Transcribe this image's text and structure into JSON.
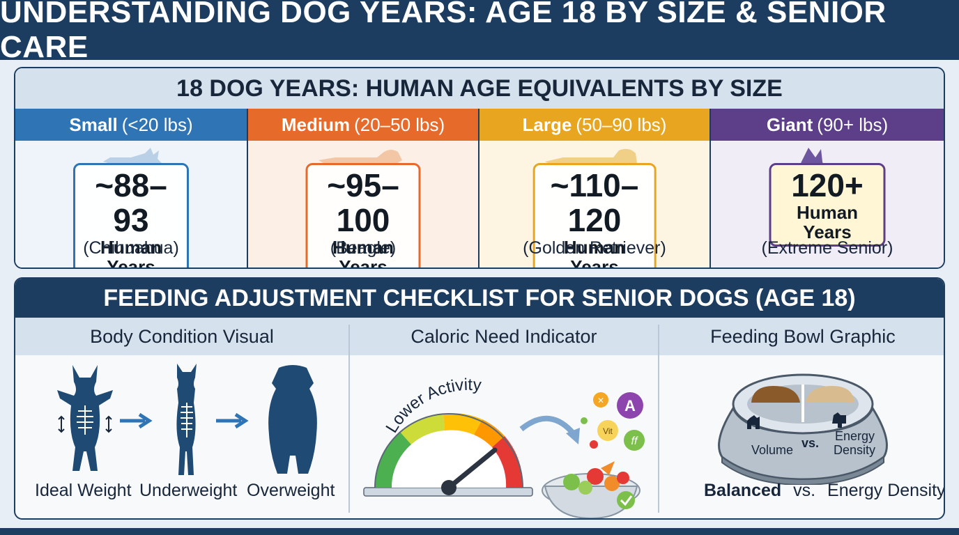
{
  "header": {
    "title": "UNDERSTANDING DOG YEARS: AGE 18 BY SIZE & SENIOR CARE"
  },
  "age_section": {
    "title": "18 DOG YEARS: HUMAN AGE EQUIVALENTS BY SIZE",
    "sizes": [
      {
        "name": "Small",
        "range": "(<20 lbs)",
        "age": "~88–93",
        "unit": "Human Years",
        "breed": "(Chihuahua)",
        "color": "#2f74b5",
        "tint": "#eef4fa"
      },
      {
        "name": "Medium",
        "range": "(20–50 lbs)",
        "age": "~95–100",
        "unit": "Human Years",
        "breed": "(Beagle)",
        "color": "#e66a2a",
        "tint": "#fcefe6"
      },
      {
        "name": "Large",
        "range": "(50–90 lbs)",
        "age": "~110–120",
        "unit": "Human Years",
        "breed": "(Golden Retriever)",
        "color": "#e8a520",
        "tint": "#fdf5e2"
      },
      {
        "name": "Giant",
        "range": "(90+ lbs)",
        "age": "120+",
        "unit": "Human Years",
        "breed": "(Extreme Senior)",
        "color": "#5c3f88",
        "tint": "#f1edf6"
      }
    ]
  },
  "feeding_section": {
    "title": "FEEDING ADJUSTMENT CHECKLIST FOR SENIOR DOGS (AGE 18)",
    "body_condition": {
      "heading": "Body Condition Visual",
      "labels": [
        "Ideal Weight",
        "Underweight",
        "Overweight"
      ]
    },
    "caloric": {
      "heading": "Caloric Need Indicator",
      "gauge_label": "Lower Activity",
      "vitamins": [
        "A",
        "Vit",
        "ff"
      ]
    },
    "bowl": {
      "heading": "Feeding Bowl Graphic",
      "left_label": "Volume",
      "vs_label": "vs.",
      "right_label_1": "Energy",
      "right_label_2": "Density",
      "caption_bold": "Balanced",
      "caption_vs": "vs.",
      "caption_rest": "Energy Density"
    }
  },
  "colors": {
    "navy": "#1d3d60",
    "band": "#d5e1ec"
  }
}
